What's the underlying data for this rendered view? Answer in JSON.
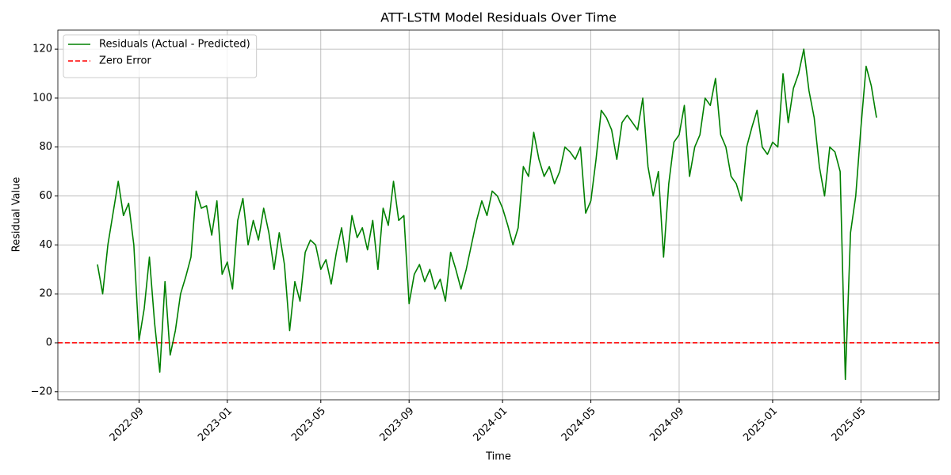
{
  "chart_data": {
    "type": "line",
    "title": "ATT-LSTM Model Residuals Over Time",
    "xlabel": "Time",
    "ylabel": "Residual Value",
    "categories": [
      null,
      null,
      null,
      null,
      null,
      null,
      null,
      null,
      "2022-09",
      null,
      null,
      null,
      null,
      null,
      null,
      null,
      null,
      null,
      null,
      null,
      null,
      null,
      null,
      null,
      null,
      "2023-01",
      null,
      null,
      null,
      null,
      null,
      null,
      null,
      null,
      null,
      null,
      null,
      null,
      null,
      null,
      null,
      null,
      null,
      "2023-05",
      null,
      null,
      null,
      null,
      null,
      null,
      null,
      null,
      null,
      null,
      null,
      null,
      null,
      null,
      null,
      null,
      "2023-09",
      null,
      null,
      null,
      null,
      null,
      null,
      null,
      null,
      null,
      null,
      null,
      null,
      null,
      null,
      null,
      null,
      null,
      "2024-01",
      null,
      null,
      null,
      null,
      null,
      null,
      null,
      null,
      null,
      null,
      null,
      null,
      null,
      null,
      null,
      null,
      "2024-05",
      null,
      null,
      null,
      null,
      null,
      null,
      null,
      null,
      null,
      null,
      null,
      null,
      null,
      null,
      null,
      null,
      "2024-09",
      null,
      null,
      null,
      null,
      null,
      null,
      null,
      null,
      null,
      null,
      null,
      null,
      null,
      null,
      null,
      null,
      null,
      "2025-01",
      null,
      null,
      null,
      null,
      null,
      null,
      null,
      null,
      null,
      null,
      null,
      null,
      null,
      null,
      null,
      null,
      "2025-05",
      null,
      null,
      null
    ],
    "series": [
      {
        "name": "Residuals (Actual - Predicted)",
        "color": "#008000",
        "values": [
          32,
          20,
          40,
          53,
          66,
          52,
          57,
          40,
          1,
          14,
          35,
          8,
          -12,
          25,
          -5,
          5,
          20,
          27,
          35,
          62,
          55,
          56,
          44,
          58,
          28,
          33,
          22,
          50,
          59,
          40,
          50,
          42,
          55,
          45,
          30,
          45,
          32,
          5,
          25,
          17,
          37,
          42,
          40,
          30,
          34,
          24,
          37,
          47,
          33,
          52,
          43,
          47,
          38,
          50,
          30,
          55,
          48,
          66,
          50,
          52,
          16,
          28,
          32,
          25,
          30,
          22,
          26,
          17,
          37,
          30,
          22,
          30,
          40,
          50,
          58,
          52,
          62,
          60,
          55,
          48,
          40,
          47,
          72,
          68,
          86,
          75,
          68,
          72,
          65,
          70,
          80,
          78,
          75,
          80,
          53,
          58,
          75,
          95,
          92,
          87,
          75,
          90,
          93,
          90,
          87,
          100,
          72,
          60,
          70,
          35,
          65,
          82,
          85,
          97,
          68,
          80,
          85,
          100,
          97,
          108,
          85,
          80,
          68,
          65,
          58,
          80,
          88,
          95,
          80,
          77,
          82,
          80,
          110,
          90,
          104,
          110,
          120,
          103,
          92,
          72,
          60,
          80,
          78,
          70,
          -15,
          45,
          60,
          88,
          113,
          105,
          92
        ]
      }
    ],
    "hline": {
      "name": "Zero Error",
      "value": 0,
      "color": "#ff0000",
      "dashed": true
    },
    "ylim": [
      -23.3,
      127.8
    ],
    "yticks": [
      {
        "value": -20,
        "label": "−20"
      },
      0,
      20,
      40,
      60,
      80,
      100,
      120
    ],
    "grid": true,
    "legend": "upper left"
  }
}
